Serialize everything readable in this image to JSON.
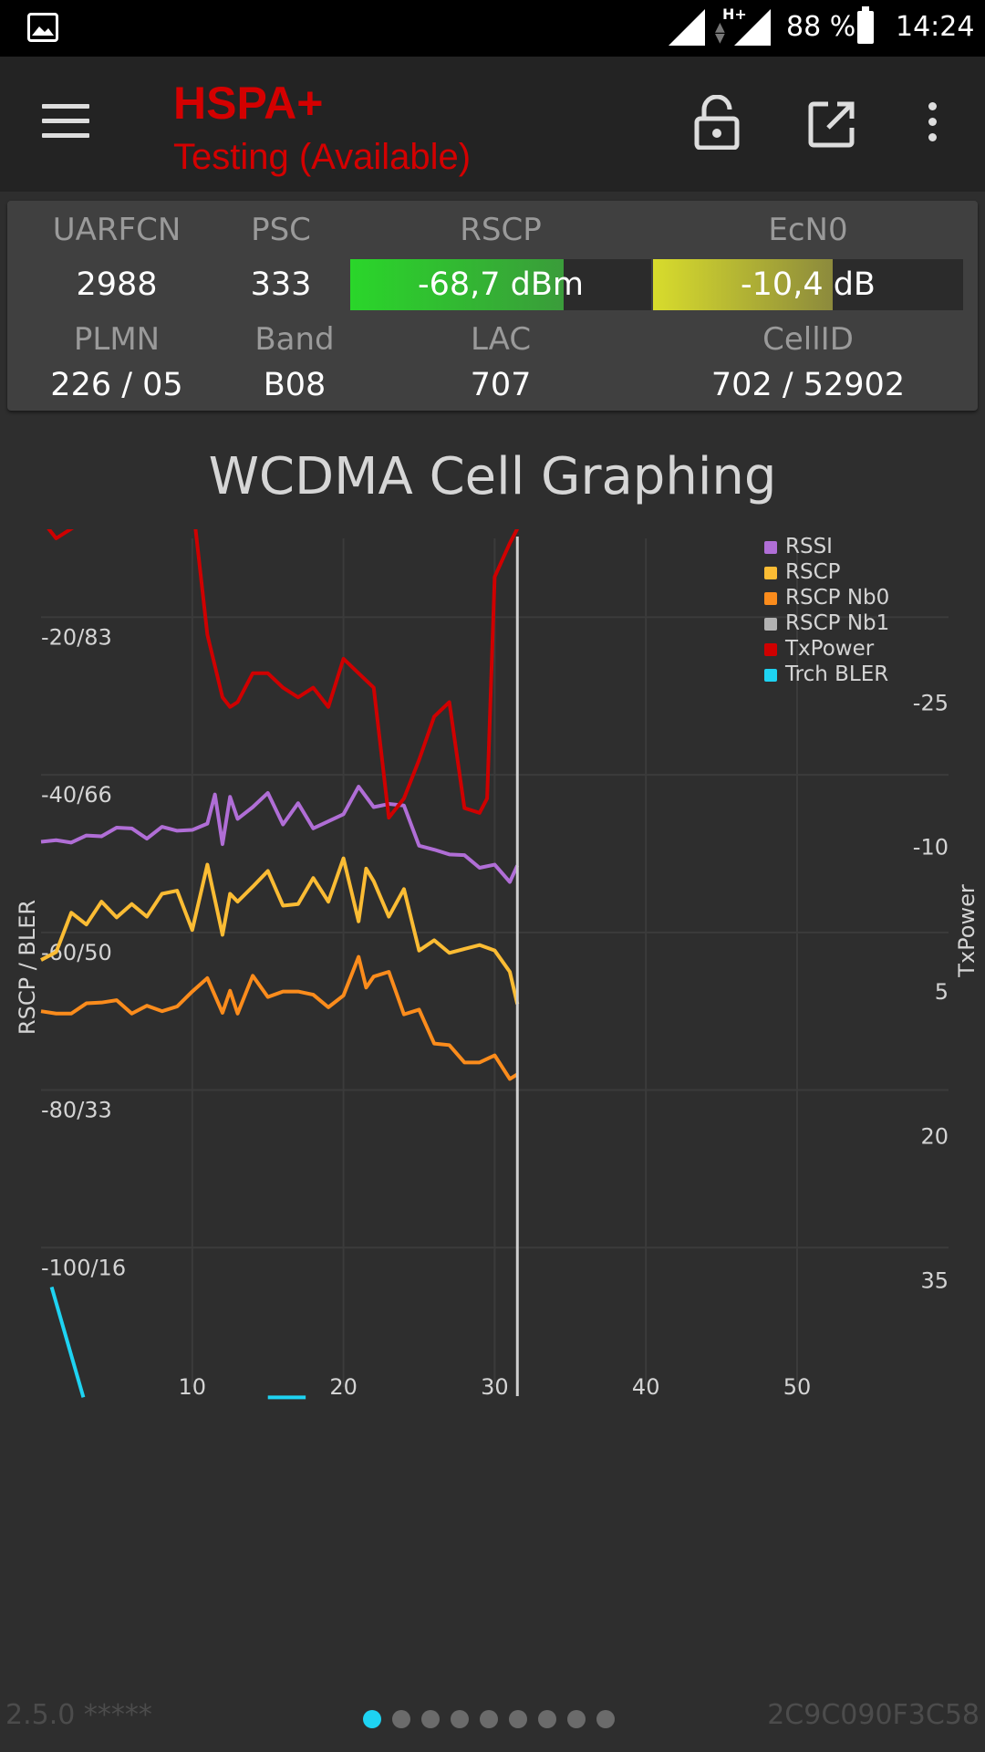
{
  "status_bar": {
    "battery": "88 %",
    "time": "14:24",
    "network": "H+",
    "icons": [
      "gallery-icon",
      "signal-icon",
      "data-arrows-icon",
      "signal-icon",
      "battery-icon"
    ]
  },
  "toolbar": {
    "title": "HSPA+",
    "subtitle": "Testing (Available)",
    "icons": [
      "menu-icon",
      "lock-icon",
      "open-external-icon",
      "more-vert-icon"
    ],
    "accent": "#d40000"
  },
  "cell_info": {
    "uarfcn_label": "UARFCN",
    "uarfcn": "2988",
    "psc_label": "PSC",
    "psc": "333",
    "rscp_label": "RSCP",
    "rscp": "-68,7 dBm",
    "rscp_level": 0.71,
    "rscp_color": "#2ad62a",
    "ecn0_label": "EcN0",
    "ecn0": "-10,4 dB",
    "ecn0_level": 0.58,
    "ecn0_color": "#d8dc2c",
    "plmn_label": "PLMN",
    "plmn": "226 / 05",
    "band_label": "Band",
    "band": "B08",
    "lac_label": "LAC",
    "lac": "707",
    "cellid_label": "CellID",
    "cellid": "702 / 52902"
  },
  "chart_title": "WCDMA Cell Graphing",
  "chart_data": {
    "type": "line",
    "title": "WCDMA Cell Graphing",
    "xlabel": "",
    "ylabel": "RSCP / BLER",
    "y2label": "TxPower",
    "xlim": [
      0,
      60
    ],
    "ylim": [
      -120,
      -10
    ],
    "y2lim": [
      50,
      -40
    ],
    "x_ticks": [
      10,
      20,
      30,
      40,
      50
    ],
    "y_ticks": [
      {
        "value": -20,
        "label": "-20/83"
      },
      {
        "value": -40,
        "label": "-40/66"
      },
      {
        "value": -60,
        "label": "-60/50"
      },
      {
        "value": -80,
        "label": "-80/33"
      },
      {
        "value": -100,
        "label": "-100/16"
      }
    ],
    "y2_ticks": [
      -25,
      -10,
      5,
      20,
      35
    ],
    "cursor_x": 31.5,
    "grid": true,
    "legend_position": "top-right",
    "series": [
      {
        "name": "RSSI",
        "color": "#b06ed6",
        "axis": "left",
        "x": [
          0,
          1,
          2,
          3,
          4,
          5,
          6,
          7,
          8,
          9,
          10,
          11,
          11.5,
          12,
          12.5,
          13,
          14,
          15,
          16,
          17,
          18,
          19,
          20,
          21,
          22,
          23,
          24,
          25,
          26,
          27,
          28,
          29,
          30,
          31,
          31.5
        ],
        "y": [
          -48.5,
          -48.3,
          -48.6,
          -47.7,
          -47.8,
          -46.7,
          -46.8,
          -48.1,
          -46.6,
          -47.1,
          -47.0,
          -46.2,
          -42.5,
          -48.8,
          -42.8,
          -45.6,
          -44.1,
          -42.3,
          -46.3,
          -43.6,
          -46.8,
          -45.9,
          -45.0,
          -41.5,
          -44.1,
          -43.7,
          -43.9,
          -49.0,
          -49.5,
          -50.1,
          -50.2,
          -51.8,
          -51.4,
          -53.6,
          -51.5
        ]
      },
      {
        "name": "RSCP",
        "color": "#fbbc34",
        "axis": "left",
        "x": [
          0,
          1,
          2,
          3,
          4,
          5,
          6,
          7,
          8,
          9,
          10,
          11,
          12,
          12.5,
          13,
          14,
          15,
          16,
          17,
          18,
          19,
          20,
          21,
          21.5,
          22,
          23,
          24,
          25,
          26,
          27,
          28,
          29,
          30,
          31,
          31.5
        ],
        "y": [
          -63.5,
          -62.5,
          -57.5,
          -59.0,
          -56.1,
          -58.1,
          -56.4,
          -58.0,
          -55.1,
          -54.7,
          -59.7,
          -51.4,
          -60.3,
          -55.1,
          -56.1,
          -54.2,
          -52.2,
          -56.6,
          -56.4,
          -53.1,
          -56.1,
          -50.6,
          -58.6,
          -51.9,
          -53.5,
          -58.0,
          -54.5,
          -62.3,
          -61.0,
          -62.6,
          -62.1,
          -61.6,
          -62.3,
          -65.0,
          -69.1
        ]
      },
      {
        "name": "RSCP Nb0",
        "color": "#fb8c1c",
        "axis": "left",
        "x": [
          0,
          1,
          2,
          3,
          4,
          5,
          6,
          7,
          8,
          9,
          10,
          11,
          12,
          12.5,
          13,
          14,
          15,
          16,
          17,
          18,
          19,
          20,
          21,
          21.5,
          22,
          23,
          24,
          25,
          26,
          27,
          28,
          29,
          30,
          31,
          31.5
        ],
        "y": [
          -70.0,
          -70.3,
          -70.3,
          -69.0,
          -68.9,
          -68.6,
          -70.3,
          -69.3,
          -70.0,
          -69.4,
          -67.5,
          -65.8,
          -70.2,
          -67.4,
          -70.3,
          -65.5,
          -68.2,
          -67.5,
          -67.5,
          -67.9,
          -69.5,
          -68.0,
          -63.1,
          -67.0,
          -65.6,
          -65.0,
          -70.4,
          -69.8,
          -74.1,
          -74.3,
          -76.5,
          -76.5,
          -75.6,
          -78.6,
          -78.0
        ]
      },
      {
        "name": "RSCP Nb1",
        "color": "#b2b2b2",
        "axis": "left",
        "x": [],
        "y": []
      },
      {
        "name": "TxPower",
        "color": "#cf0000",
        "axis": "right",
        "x": [
          0,
          1,
          2,
          3,
          4,
          5,
          6,
          7,
          8,
          9,
          10,
          11,
          12,
          12.5,
          13,
          14,
          15,
          16,
          17,
          18,
          19,
          20,
          21,
          22,
          23,
          24,
          25,
          26,
          27,
          28,
          29,
          29.5,
          30,
          31,
          31.5
        ],
        "y": [
          -42.0,
          -40.0,
          -41.0,
          -42.0,
          -43.0,
          -44.0,
          -43.5,
          -43.5,
          -43.5,
          -44.0,
          -44.0,
          -30.0,
          -23.5,
          -22.5,
          -23.0,
          -26.0,
          -26.0,
          -24.5,
          -23.5,
          -24.5,
          -22.5,
          -27.5,
          -26.0,
          -24.5,
          -11.0,
          -13.0,
          -17.0,
          -21.5,
          -23.0,
          -12.0,
          -11.5,
          -13.0,
          -36.0,
          -39.5,
          -41.0
        ]
      },
      {
        "name": "Trch BLER",
        "color": "#1ed3f2",
        "axis": "left",
        "segments": [
          {
            "x": [
              0.7,
              2.8
            ],
            "y": [
              -105,
              -119
            ]
          },
          {
            "x": [
              15.0,
              17.5
            ],
            "y": [
              -119,
              -119
            ]
          }
        ]
      }
    ]
  },
  "footer": {
    "version": "2.5.0 *****",
    "device_id": "2C9C090F3C58",
    "pages": 9,
    "active_page": 0
  }
}
